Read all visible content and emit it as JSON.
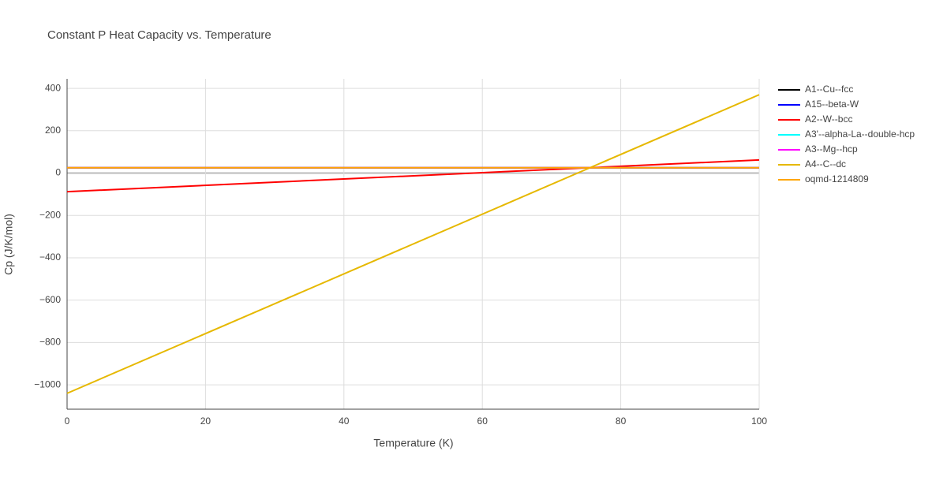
{
  "chart_data": {
    "type": "line",
    "title": "Constant P Heat Capacity vs. Temperature",
    "x_label": "Temperature (K)",
    "y_label": "Cp (J/K/mol)",
    "x": [
      0,
      100
    ],
    "series": [
      {
        "name": "A1--Cu--fcc",
        "color": "#000000",
        "values": [
          25,
          25
        ]
      },
      {
        "name": "A15--beta-W",
        "color": "#0000ff",
        "values": [
          25,
          25
        ]
      },
      {
        "name": "A2--W--bcc",
        "color": "#ff0000",
        "values": [
          -88,
          62
        ]
      },
      {
        "name": "A3'--alpha-La--double-hcp",
        "color": "#00ffff",
        "values": [
          25,
          25
        ]
      },
      {
        "name": "A3--Mg--hcp",
        "color": "#ff00ff",
        "values": [
          25,
          25
        ]
      },
      {
        "name": "A4--C--dc",
        "color": "#e6b800",
        "values": [
          -1040,
          370
        ]
      },
      {
        "name": "oqmd-1214809",
        "color": "#ffa500",
        "values": [
          25,
          25
        ]
      }
    ],
    "xlim": [
      0,
      100
    ],
    "xticks": [
      0,
      20,
      40,
      60,
      80,
      100
    ],
    "ylim": [
      -1115,
      445
    ],
    "yticks": [
      {
        "value": -1000,
        "label": "−1000"
      },
      {
        "value": -800,
        "label": "−800"
      },
      {
        "value": -600,
        "label": "−600"
      },
      {
        "value": -400,
        "label": "−400"
      },
      {
        "value": -200,
        "label": "−200"
      },
      0,
      200,
      400
    ],
    "grid": true,
    "legend": "right"
  }
}
